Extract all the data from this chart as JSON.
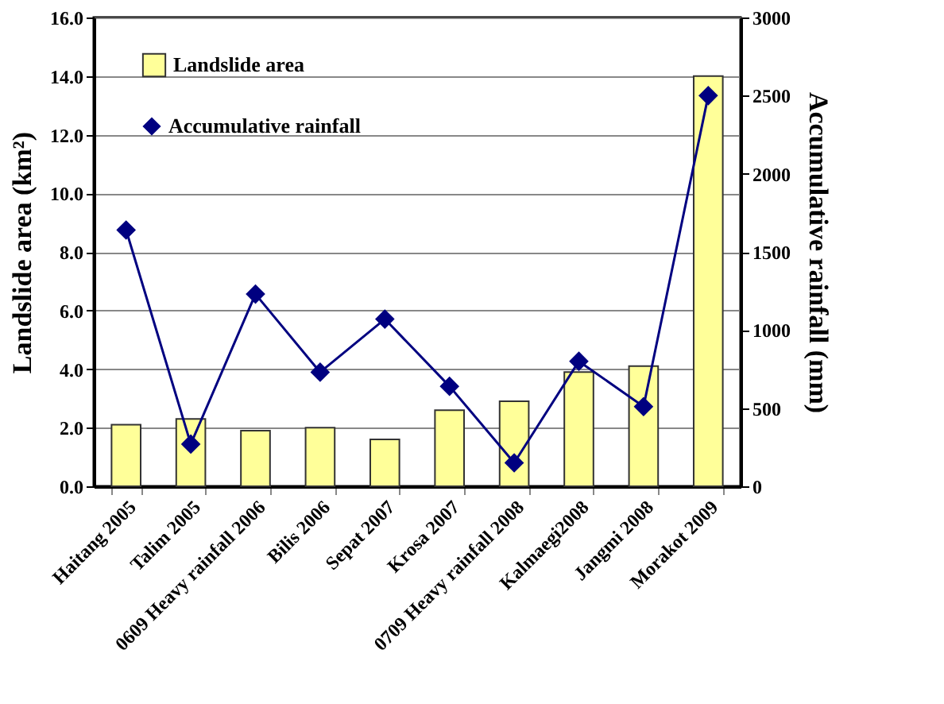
{
  "chart_data": {
    "type": "bar",
    "categories": [
      "Haitang 2005",
      "Talim 2005",
      "0609 Heavy rainfall 2006",
      "Bilis 2006",
      "Sepat 2007",
      "Krosa 2007",
      "0709 Heavy rainfall 2008",
      "Kalmaegi2008",
      "Jangmi 2008",
      "Morakot 2009"
    ],
    "series": [
      {
        "name": "Landslide area",
        "color": "#ffff99",
        "values": [
          2.1,
          2.3,
          1.9,
          2.0,
          1.6,
          2.6,
          2.9,
          3.9,
          4.1,
          14.0
        ]
      },
      {
        "name": "Accumulative rainfall",
        "type": "line",
        "axis": "y2",
        "color": "#000080",
        "values": [
          1640,
          270,
          1230,
          730,
          1070,
          640,
          150,
          800,
          510,
          2500
        ]
      }
    ],
    "ylabel": "Landslide area (km²)",
    "y2label": "Accumulative  rainfall (mm)",
    "ylim": [
      0,
      16
    ],
    "yticks": [
      {
        "value": 0,
        "label": "0.0"
      },
      {
        "value": 2,
        "label": "2.0"
      },
      {
        "value": 4,
        "label": "4.0"
      },
      {
        "value": 6,
        "label": "6.0"
      },
      {
        "value": 8,
        "label": "8.0"
      },
      {
        "value": 10,
        "label": "10.0"
      },
      {
        "value": 12,
        "label": "12.0"
      },
      {
        "value": 14,
        "label": "14.0"
      },
      {
        "value": 16,
        "label": "16.0"
      }
    ],
    "y2lim": [
      0,
      3000
    ],
    "y2ticks": [
      0,
      500,
      1000,
      1500,
      2000,
      2500,
      3000
    ],
    "grid": "y",
    "legend": "top left",
    "marker": "diamond"
  }
}
